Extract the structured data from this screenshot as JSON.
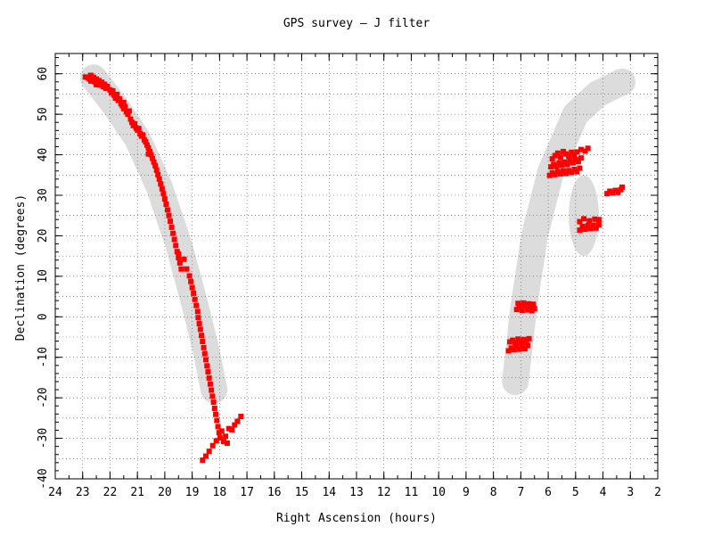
{
  "chart_data": {
    "type": "scatter",
    "title": "GPS survey — J filter",
    "xlabel": "Right Ascension (hours)",
    "ylabel": "Declination (degrees)",
    "xlim": [
      24,
      2
    ],
    "ylim": [
      -40,
      65
    ],
    "x_reversed": true,
    "xticks": [
      24,
      23,
      22,
      21,
      20,
      19,
      18,
      17,
      16,
      15,
      14,
      13,
      12,
      11,
      10,
      9,
      8,
      7,
      6,
      5,
      4,
      3,
      2
    ],
    "yticks": [
      60,
      50,
      40,
      30,
      20,
      10,
      0,
      -10,
      -20,
      -30,
      -40
    ],
    "grid": true,
    "marker_color": "#ff0000",
    "band_color": "#dcdcdc",
    "background_bands": [
      {
        "name": "inner-galactic-plane",
        "points": [
          [
            22.6,
            59
          ],
          [
            21.8,
            52
          ],
          [
            21,
            44
          ],
          [
            20.2,
            32
          ],
          [
            19.5,
            18
          ],
          [
            18.9,
            3
          ],
          [
            18.5,
            -8
          ],
          [
            18.2,
            -18
          ]
        ]
      },
      {
        "name": "outer-galactic-plane",
        "points": [
          [
            7.2,
            -16
          ],
          [
            6.9,
            2
          ],
          [
            6.5,
            20
          ],
          [
            5.9,
            36
          ],
          [
            5,
            50
          ],
          [
            4.2,
            55
          ],
          [
            3.3,
            58
          ]
        ]
      },
      {
        "name": "secondary-blob",
        "center": [
          4.7,
          25
        ],
        "radius_ra": 0.55,
        "radius_dec": 10
      }
    ],
    "series": [
      {
        "points": [
          [
            22.8,
            59
          ],
          [
            22.75,
            58.7
          ],
          [
            22.7,
            58.2
          ],
          [
            22.65,
            58.6
          ],
          [
            22.6,
            59.1
          ],
          [
            22.55,
            58
          ],
          [
            22.5,
            58.7
          ],
          [
            22.45,
            57.6
          ],
          [
            22.4,
            58.3
          ],
          [
            22.35,
            57.2
          ],
          [
            22.3,
            57.9
          ],
          [
            22.25,
            56.8
          ],
          [
            22.2,
            57.4
          ],
          [
            22.15,
            56.4
          ],
          [
            22.1,
            56.9
          ],
          [
            22,
            56
          ],
          [
            21.95,
            55.3
          ],
          [
            21.9,
            55.8
          ],
          [
            21.85,
            54.7
          ],
          [
            21.8,
            54
          ],
          [
            21.75,
            54.9
          ],
          [
            21.7,
            53.4
          ],
          [
            21.65,
            53.8
          ],
          [
            21.6,
            52.6
          ],
          [
            21.55,
            52.1
          ],
          [
            21.5,
            51.4
          ],
          [
            21.45,
            51.9
          ],
          [
            21.4,
            50.6
          ],
          [
            21.35,
            50
          ],
          [
            21.3,
            50.8
          ],
          [
            21.2,
            48
          ],
          [
            21.15,
            47.2
          ],
          [
            21.1,
            47.6
          ],
          [
            21.05,
            46.6
          ],
          [
            21,
            46.1
          ],
          [
            20.95,
            46.5
          ],
          [
            20.9,
            45.2
          ],
          [
            20.85,
            44.6
          ],
          [
            20.8,
            44.9
          ],
          [
            20.75,
            43.7
          ],
          [
            20.7,
            43.2
          ],
          [
            20.65,
            42.4
          ],
          [
            20.6,
            41.7
          ],
          [
            20.55,
            40.8
          ],
          [
            20.5,
            40
          ],
          [
            20.45,
            39.1
          ],
          [
            20.4,
            38.2
          ],
          [
            20.35,
            37.3
          ],
          [
            20.3,
            36.2
          ],
          [
            20.25,
            35.1
          ],
          [
            20.2,
            34
          ],
          [
            20.15,
            32.8
          ],
          [
            20.1,
            31.6
          ],
          [
            20.05,
            30.4
          ],
          [
            20,
            29.1
          ],
          [
            19.95,
            27.8
          ],
          [
            19.9,
            26.4
          ],
          [
            19.85,
            25
          ],
          [
            19.8,
            23.6
          ],
          [
            19.75,
            22.1
          ],
          [
            19.7,
            20.6
          ],
          [
            19.65,
            19.1
          ],
          [
            19.6,
            17.6
          ],
          [
            19.55,
            16.1
          ],
          [
            19.5,
            14.6
          ],
          [
            19.45,
            13.3
          ],
          [
            19.4,
            11.8
          ],
          [
            19.2,
            11.8
          ],
          [
            19.1,
            10.1
          ],
          [
            19.05,
            8.7
          ],
          [
            19,
            7.2
          ],
          [
            18.95,
            5.8
          ],
          [
            18.9,
            4.3
          ],
          [
            18.85,
            2.8
          ],
          [
            18.8,
            1.3
          ],
          [
            18.78,
            -0.2
          ],
          [
            18.74,
            -1.7
          ],
          [
            18.7,
            -3.1
          ],
          [
            18.66,
            -4.6
          ],
          [
            18.62,
            -6.1
          ],
          [
            18.58,
            -7.6
          ],
          [
            18.54,
            -9.1
          ],
          [
            18.5,
            -10.6
          ],
          [
            18.46,
            -12.1
          ],
          [
            18.42,
            -13.6
          ],
          [
            18.38,
            -15.1
          ],
          [
            18.34,
            -16.6
          ],
          [
            18.3,
            -18.1
          ],
          [
            18.26,
            -19.6
          ],
          [
            18.22,
            -21.1
          ],
          [
            18.18,
            -22.6
          ],
          [
            18.14,
            -24.1
          ],
          [
            18.1,
            -25.6
          ],
          [
            18.06,
            -27.1
          ],
          [
            18.02,
            -28.6
          ],
          [
            17.98,
            -29.9
          ],
          [
            17.92,
            -28.2
          ],
          [
            17.85,
            -30.8
          ],
          [
            17.78,
            -29.5
          ],
          [
            17.72,
            -31.2
          ],
          [
            17.66,
            -27.6
          ],
          [
            17.55,
            -27.9
          ],
          [
            17.45,
            -26.7
          ],
          [
            17.35,
            -25.8
          ],
          [
            17.22,
            -24.6
          ],
          [
            18.12,
            -30.6
          ],
          [
            18.25,
            -31.8
          ],
          [
            18.38,
            -33.2
          ],
          [
            18.5,
            -34.4
          ],
          [
            18.62,
            -35.4
          ],
          [
            22.9,
            59.2
          ],
          [
            22.7,
            59.6
          ],
          [
            22.5,
            57.3
          ],
          [
            21.5,
            52.9
          ],
          [
            21.25,
            48.8
          ],
          [
            20.6,
            40.2
          ],
          [
            19.3,
            14.2
          ],
          [
            19.5,
            15.5
          ],
          [
            7.45,
            -8.4
          ],
          [
            7.35,
            -7.7
          ],
          [
            7.25,
            -8.1
          ],
          [
            7.15,
            -7.3
          ],
          [
            7.05,
            -8
          ],
          [
            6.95,
            -7.2
          ],
          [
            6.85,
            -7.9
          ],
          [
            6.75,
            -7.1
          ],
          [
            7.4,
            -6.2
          ],
          [
            7.3,
            -5.8
          ],
          [
            7.2,
            -6.5
          ],
          [
            7.1,
            -5.5
          ],
          [
            7,
            -6.3
          ],
          [
            6.9,
            -5.6
          ],
          [
            6.8,
            -6
          ],
          [
            6.7,
            -5.4
          ],
          [
            7.15,
            1.8
          ],
          [
            7.05,
            2.5
          ],
          [
            6.95,
            1.6
          ],
          [
            6.85,
            2.9
          ],
          [
            6.75,
            1.7
          ],
          [
            6.65,
            2.6
          ],
          [
            6.55,
            3.1
          ],
          [
            6.5,
            2
          ],
          [
            7.1,
            3.3
          ],
          [
            6.9,
            3.4
          ],
          [
            6.7,
            3.2
          ],
          [
            6.6,
            1.5
          ],
          [
            5.95,
            34.9
          ],
          [
            5.85,
            35.5
          ],
          [
            5.75,
            35.1
          ],
          [
            5.65,
            35.8
          ],
          [
            5.55,
            35.3
          ],
          [
            5.45,
            36
          ],
          [
            5.35,
            35.4
          ],
          [
            5.25,
            36.1
          ],
          [
            5.15,
            35.6
          ],
          [
            5.05,
            36.4
          ],
          [
            4.95,
            35.8
          ],
          [
            4.85,
            36.7
          ],
          [
            5.9,
            37
          ],
          [
            5.8,
            37.6
          ],
          [
            5.7,
            37.1
          ],
          [
            5.6,
            38
          ],
          [
            5.5,
            37.4
          ],
          [
            5.4,
            38.2
          ],
          [
            5.3,
            37.6
          ],
          [
            5.2,
            38.6
          ],
          [
            5.1,
            38
          ],
          [
            5,
            38.9
          ],
          [
            4.9,
            38.3
          ],
          [
            4.8,
            39.2
          ],
          [
            5.85,
            39
          ],
          [
            5.75,
            39.8
          ],
          [
            5.65,
            40.4
          ],
          [
            5.55,
            39.4
          ],
          [
            5.45,
            40.8
          ],
          [
            5.35,
            40.2
          ],
          [
            5.25,
            39.6
          ],
          [
            5.15,
            40.6
          ],
          [
            5.05,
            39.9
          ],
          [
            4.95,
            40.7
          ],
          [
            4.8,
            41.3
          ],
          [
            4.65,
            40.9
          ],
          [
            4.55,
            41.6
          ],
          [
            4.85,
            21.4
          ],
          [
            4.75,
            22.3
          ],
          [
            4.65,
            21.6
          ],
          [
            4.55,
            22.5
          ],
          [
            4.45,
            21.8
          ],
          [
            4.35,
            22.6
          ],
          [
            4.25,
            21.9
          ],
          [
            4.15,
            22.7
          ],
          [
            4.85,
            23.5
          ],
          [
            4.7,
            24.2
          ],
          [
            4.5,
            23.7
          ],
          [
            4.3,
            24.1
          ],
          [
            4.15,
            24
          ],
          [
            3.85,
            30.4
          ],
          [
            3.75,
            31
          ],
          [
            3.65,
            30.6
          ],
          [
            3.55,
            31.2
          ],
          [
            3.45,
            30.7
          ],
          [
            3.35,
            31.4
          ],
          [
            3.3,
            32
          ]
        ]
      }
    ]
  }
}
